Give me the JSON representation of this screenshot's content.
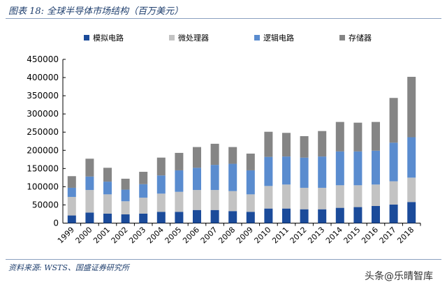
{
  "header": {
    "title": "图表 18: 全球半导体市场结构（百万美元）"
  },
  "footer": {
    "source": "资料来源: WSTS、国盛证券研究所",
    "watermark": "头条@乐晴智库"
  },
  "chart_data": {
    "type": "bar",
    "stacked": true,
    "title": "",
    "xlabel": "",
    "ylabel": "",
    "ylim": [
      0,
      450000
    ],
    "yticks": [
      "0",
      "50000",
      "100000",
      "150000",
      "200000",
      "250000",
      "300000",
      "350000",
      "400000",
      "450000"
    ],
    "legend_position": "top",
    "categories": [
      "1999",
      "2000",
      "2001",
      "2002",
      "2003",
      "2004",
      "2005",
      "2006",
      "2007",
      "2008",
      "2009",
      "2010",
      "2011",
      "2012",
      "2013",
      "2014",
      "2015",
      "2016",
      "2017",
      "2018"
    ],
    "series": [
      {
        "name": "模拟电路",
        "color": "#1b4b9a",
        "values": [
          21000,
          29000,
          26000,
          24000,
          26000,
          31000,
          31000,
          36000,
          36000,
          33000,
          31000,
          40000,
          40000,
          38000,
          38000,
          42000,
          44000,
          47000,
          51000,
          58000
        ]
      },
      {
        "name": "微处理器",
        "color": "#c3c3c3",
        "values": [
          51000,
          62000,
          53000,
          36000,
          44000,
          50000,
          55000,
          55000,
          55000,
          55000,
          48000,
          62000,
          66000,
          59000,
          59000,
          62000,
          60000,
          59000,
          64000,
          67000
        ]
      },
      {
        "name": "逻辑电路",
        "color": "#5a8ccf",
        "values": [
          25000,
          37000,
          35000,
          32000,
          37000,
          50000,
          59000,
          61000,
          69000,
          75000,
          66000,
          80000,
          77000,
          83000,
          86000,
          93000,
          93000,
          93000,
          106000,
          111000
        ]
      },
      {
        "name": "存储器",
        "color": "#858585",
        "values": [
          32000,
          49000,
          38000,
          30000,
          34000,
          49000,
          48000,
          57000,
          58000,
          46000,
          46000,
          69000,
          65000,
          59000,
          70000,
          81000,
          79000,
          79000,
          123000,
          166000
        ]
      }
    ]
  }
}
